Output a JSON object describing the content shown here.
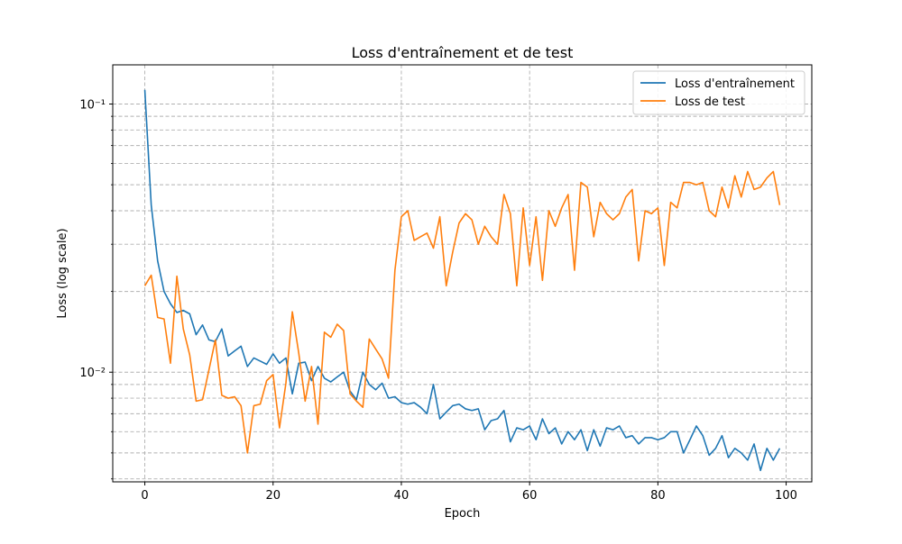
{
  "chart_data": {
    "type": "line",
    "title": "Loss d'entraînement et de test",
    "xlabel": "Epoch",
    "ylabel": "Loss (log scale)",
    "yscale": "log",
    "xlim": [
      -5,
      104
    ],
    "ylim": [
      0.0039,
      0.14
    ],
    "xticks": [
      0,
      20,
      40,
      60,
      80,
      100
    ],
    "xtick_labels": [
      "0",
      "20",
      "40",
      "60",
      "80",
      "100"
    ],
    "yticks_major": [
      0.01,
      0.1
    ],
    "ytick_labels": [
      "10⁻²",
      "10⁻¹"
    ],
    "yticks_minor": [
      0.004,
      0.005,
      0.006,
      0.007,
      0.008,
      0.009,
      0.02,
      0.03,
      0.04,
      0.05,
      0.06,
      0.07,
      0.08,
      0.09
    ],
    "grid": true,
    "legend_position": "top-right",
    "x": [
      0,
      1,
      2,
      3,
      4,
      5,
      6,
      7,
      8,
      9,
      10,
      11,
      12,
      13,
      14,
      15,
      16,
      17,
      18,
      19,
      20,
      21,
      22,
      23,
      24,
      25,
      26,
      27,
      28,
      29,
      30,
      31,
      32,
      33,
      34,
      35,
      36,
      37,
      38,
      39,
      40,
      41,
      42,
      43,
      44,
      45,
      46,
      47,
      48,
      49,
      50,
      51,
      52,
      53,
      54,
      55,
      56,
      57,
      58,
      59,
      60,
      61,
      62,
      63,
      64,
      65,
      66,
      67,
      68,
      69,
      70,
      71,
      72,
      73,
      74,
      75,
      76,
      77,
      78,
      79,
      80,
      81,
      82,
      83,
      84,
      85,
      86,
      87,
      88,
      89,
      90,
      91,
      92,
      93,
      94,
      95,
      96,
      97,
      98,
      99
    ],
    "series": [
      {
        "name": "Loss d'entraînement",
        "color": "#1f77b4",
        "values": [
          0.113,
          0.042,
          0.026,
          0.02,
          0.018,
          0.0167,
          0.017,
          0.0165,
          0.0138,
          0.015,
          0.0132,
          0.013,
          0.0145,
          0.0115,
          0.012,
          0.0125,
          0.0105,
          0.0113,
          0.011,
          0.0107,
          0.0117,
          0.0108,
          0.0113,
          0.0083,
          0.0108,
          0.0109,
          0.0093,
          0.0105,
          0.0095,
          0.0092,
          0.0096,
          0.01,
          0.0085,
          0.0079,
          0.01,
          0.009,
          0.0086,
          0.0091,
          0.008,
          0.0081,
          0.0077,
          0.0076,
          0.0077,
          0.0074,
          0.007,
          0.009,
          0.0067,
          0.0071,
          0.0075,
          0.0076,
          0.0073,
          0.0072,
          0.0073,
          0.0061,
          0.0066,
          0.0067,
          0.0072,
          0.0055,
          0.0062,
          0.0061,
          0.0063,
          0.0056,
          0.0067,
          0.0059,
          0.0062,
          0.0054,
          0.006,
          0.0056,
          0.0061,
          0.0051,
          0.0061,
          0.0053,
          0.0062,
          0.0061,
          0.0063,
          0.0057,
          0.0058,
          0.0054,
          0.0057,
          0.0057,
          0.0056,
          0.0057,
          0.006,
          0.006,
          0.005,
          0.0056,
          0.0063,
          0.0058,
          0.0049,
          0.0052,
          0.0058,
          0.0048,
          0.0052,
          0.005,
          0.0047,
          0.0054,
          0.0043,
          0.0052,
          0.0047,
          0.0052
        ]
      },
      {
        "name": "Loss de test",
        "color": "#ff7f0e",
        "values": [
          0.021,
          0.023,
          0.016,
          0.0158,
          0.0108,
          0.0228,
          0.0145,
          0.0116,
          0.0078,
          0.0079,
          0.0102,
          0.0132,
          0.0082,
          0.008,
          0.0081,
          0.0075,
          0.005,
          0.0075,
          0.0076,
          0.0093,
          0.0098,
          0.0062,
          0.0091,
          0.0168,
          0.0118,
          0.0078,
          0.0105,
          0.0064,
          0.0141,
          0.0135,
          0.0151,
          0.0143,
          0.0083,
          0.0078,
          0.0074,
          0.0133,
          0.0122,
          0.0112,
          0.0095,
          0.024,
          0.038,
          0.04,
          0.031,
          0.032,
          0.033,
          0.029,
          0.038,
          0.021,
          0.028,
          0.036,
          0.039,
          0.037,
          0.03,
          0.035,
          0.032,
          0.03,
          0.046,
          0.039,
          0.021,
          0.041,
          0.025,
          0.038,
          0.022,
          0.04,
          0.035,
          0.041,
          0.046,
          0.024,
          0.051,
          0.049,
          0.032,
          0.043,
          0.039,
          0.037,
          0.039,
          0.045,
          0.048,
          0.026,
          0.04,
          0.039,
          0.041,
          0.025,
          0.043,
          0.041,
          0.051,
          0.051,
          0.05,
          0.051,
          0.04,
          0.038,
          0.049,
          0.041,
          0.054,
          0.045,
          0.056,
          0.048,
          0.049,
          0.053,
          0.056,
          0.042
        ]
      }
    ]
  }
}
